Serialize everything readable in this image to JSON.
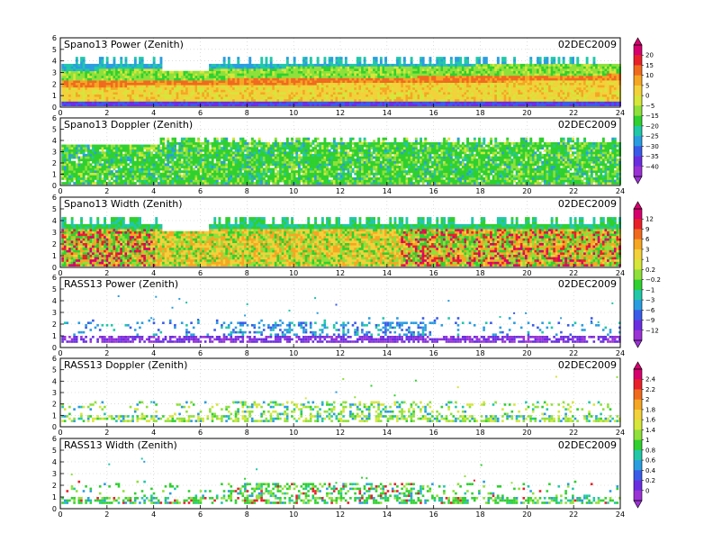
{
  "figure": {
    "date_label": "02DEC2009",
    "x_ticks": [
      "0",
      "2",
      "4",
      "6",
      "8",
      "10",
      "12",
      "14",
      "16",
      "18",
      "20",
      "22",
      "24"
    ]
  },
  "chart_data": [
    {
      "type": "heatmap",
      "title": "Spano13 Power (Zenith)",
      "date": "02DEC2009",
      "xlim": [
        0,
        24
      ],
      "ylim": [
        0,
        6
      ],
      "x_ticks": [
        0,
        2,
        4,
        6,
        8,
        10,
        12,
        14,
        16,
        18,
        20,
        22,
        24
      ],
      "y_ticks": [
        0,
        1,
        2,
        3,
        4,
        5,
        6
      ],
      "grid": true,
      "data_top_km": 4.5,
      "dominant_values": [
        8,
        15,
        -5
      ]
    },
    {
      "type": "heatmap",
      "title": "Spano13 Doppler (Zenith)",
      "date": "02DEC2009",
      "xlim": [
        0,
        24
      ],
      "ylim": [
        0,
        6
      ],
      "x_ticks": [
        0,
        2,
        4,
        6,
        8,
        10,
        12,
        14,
        16,
        18,
        20,
        22,
        24
      ],
      "y_ticks": [
        0,
        1,
        2,
        3,
        4,
        5,
        6
      ],
      "grid": true,
      "data_top_km": 4.5,
      "dominant_values": [
        -5,
        -15,
        0
      ]
    },
    {
      "type": "heatmap",
      "title": "Spano13 Width (Zenith)",
      "date": "02DEC2009",
      "xlim": [
        0,
        24
      ],
      "ylim": [
        0,
        6
      ],
      "x_ticks": [
        0,
        2,
        4,
        6,
        8,
        10,
        12,
        14,
        16,
        18,
        20,
        22,
        24
      ],
      "y_ticks": [
        0,
        1,
        2,
        3,
        4,
        5,
        6
      ],
      "grid": true,
      "data_top_km": 4.5,
      "dominant_values": [
        0.2,
        3,
        9
      ]
    },
    {
      "type": "heatmap",
      "title": "RASS13 Power (Zenith)",
      "date": "02DEC2009",
      "xlim": [
        0,
        24
      ],
      "ylim": [
        0,
        6
      ],
      "x_ticks": [
        0,
        2,
        4,
        6,
        8,
        10,
        12,
        14,
        16,
        18,
        20,
        22,
        24
      ],
      "y_ticks": [
        0,
        1,
        2,
        3,
        4,
        5,
        6
      ],
      "grid": true,
      "data_top_km": 2.5,
      "dominant_values": [
        -9,
        -6,
        -12
      ]
    },
    {
      "type": "heatmap",
      "title": "RASS13 Doppler (Zenith)",
      "date": "02DEC2009",
      "xlim": [
        0,
        24
      ],
      "ylim": [
        0,
        6
      ],
      "x_ticks": [
        0,
        2,
        4,
        6,
        8,
        10,
        12,
        14,
        16,
        18,
        20,
        22,
        24
      ],
      "y_ticks": [
        0,
        1,
        2,
        3,
        4,
        5,
        6
      ],
      "grid": true,
      "data_top_km": 2.2,
      "dominant_values": [
        1.4,
        1.6,
        1.2
      ]
    },
    {
      "type": "heatmap",
      "title": "RASS13 Width (Zenith)",
      "date": "02DEC2009",
      "xlim": [
        0,
        24
      ],
      "ylim": [
        0,
        6
      ],
      "x_ticks": [
        0,
        2,
        4,
        6,
        8,
        10,
        12,
        14,
        16,
        18,
        20,
        22,
        24
      ],
      "y_ticks": [
        0,
        1,
        2,
        3,
        4,
        5,
        6
      ],
      "grid": true,
      "data_top_km": 2.2,
      "dominant_values": [
        1,
        1.2,
        0.8
      ]
    }
  ],
  "colorbars": [
    {
      "for": "Spano13 Power, Spano13 Doppler",
      "labels": [
        "20",
        "15",
        "10",
        "5",
        "0",
        "−5",
        "−15",
        "−20",
        "−25",
        "−30",
        "−35",
        "−40"
      ],
      "colors": [
        "#d6006e",
        "#e8202a",
        "#f06a1e",
        "#f5a623",
        "#f2d13a",
        "#d6e63a",
        "#8fe03a",
        "#2fd02f",
        "#20c8a8",
        "#2a9de0",
        "#3a5be8",
        "#6a2ee0",
        "#9b32d6"
      ]
    },
    {
      "for": "Spano13 Width, RASS13 Power",
      "labels": [
        "12",
        "9",
        "6",
        "3",
        "1",
        "0.2",
        "−0.2",
        "−1",
        "−3",
        "−6",
        "−9",
        "−12"
      ],
      "colors": [
        "#d6006e",
        "#e8202a",
        "#f06a1e",
        "#f5a623",
        "#f2d13a",
        "#d6e63a",
        "#8fe03a",
        "#2fd02f",
        "#20c8a8",
        "#2a9de0",
        "#3a5be8",
        "#6a2ee0",
        "#9b32d6"
      ]
    },
    {
      "for": "RASS13 Doppler, RASS13 Width",
      "labels": [
        "2.4",
        "2.2",
        "2",
        "1.8",
        "1.6",
        "1.4",
        "1",
        "0.8",
        "0.6",
        "0.4",
        "0.2",
        "0"
      ],
      "colors": [
        "#d6006e",
        "#e8202a",
        "#f06a1e",
        "#f5a623",
        "#f2d13a",
        "#d6e63a",
        "#8fe03a",
        "#2fd02f",
        "#20c8a8",
        "#2a9de0",
        "#3a5be8",
        "#6a2ee0",
        "#9b32d6"
      ]
    }
  ]
}
